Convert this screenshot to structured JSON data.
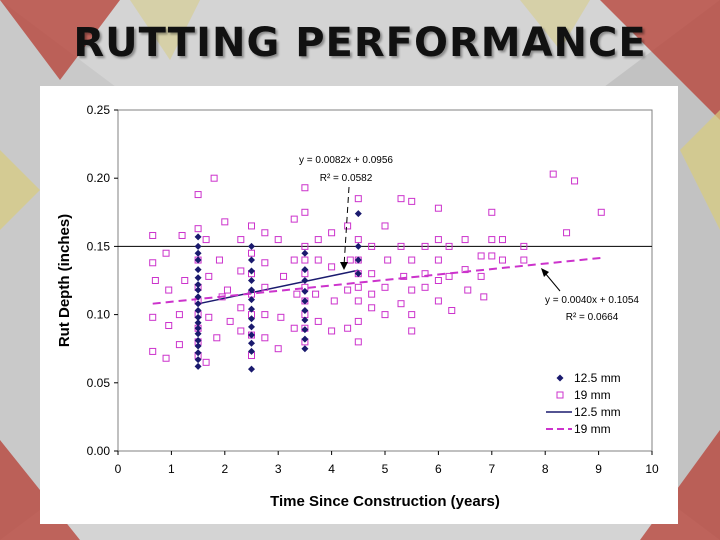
{
  "slide": {
    "title": "RUTTING PERFORMANCE"
  },
  "colors": {
    "series_12_5": "#1a1a6e",
    "series_19": "#cc33cc",
    "plot_bg": "#ffffff",
    "background_red": "#b8463c",
    "background_gold": "#d8cc7c"
  },
  "chart_data": {
    "type": "scatter",
    "title": "",
    "xlabel": "Time Since Construction (years)",
    "ylabel": "Rut Depth (inches)",
    "xlim": [
      0,
      10
    ],
    "ylim": [
      0,
      0.25
    ],
    "x_ticks": [
      "0",
      "1",
      "2",
      "3",
      "4",
      "5",
      "6",
      "7",
      "8",
      "9",
      "10"
    ],
    "y_ticks": [
      "0.00",
      "0.05",
      "0.10",
      "0.15",
      "0.20",
      "0.25"
    ],
    "grid": false,
    "reference_line": {
      "y": 0.15
    },
    "legend_position": "bottom-right",
    "series": [
      {
        "name": "12.5 mm",
        "marker": "diamond",
        "points": [
          [
            1.5,
            0.157
          ],
          [
            1.5,
            0.15
          ],
          [
            1.5,
            0.145
          ],
          [
            1.5,
            0.14
          ],
          [
            1.5,
            0.133
          ],
          [
            1.5,
            0.127
          ],
          [
            1.5,
            0.122
          ],
          [
            1.5,
            0.118
          ],
          [
            1.5,
            0.113
          ],
          [
            1.5,
            0.108
          ],
          [
            1.5,
            0.103
          ],
          [
            1.5,
            0.098
          ],
          [
            1.5,
            0.094
          ],
          [
            1.5,
            0.09
          ],
          [
            1.5,
            0.086
          ],
          [
            1.5,
            0.081
          ],
          [
            1.5,
            0.077
          ],
          [
            1.5,
            0.072
          ],
          [
            1.5,
            0.067
          ],
          [
            1.5,
            0.062
          ],
          [
            2.5,
            0.15
          ],
          [
            2.5,
            0.14
          ],
          [
            2.5,
            0.132
          ],
          [
            2.5,
            0.125
          ],
          [
            2.5,
            0.118
          ],
          [
            2.5,
            0.111
          ],
          [
            2.5,
            0.104
          ],
          [
            2.5,
            0.097
          ],
          [
            2.5,
            0.091
          ],
          [
            2.5,
            0.085
          ],
          [
            2.5,
            0.079
          ],
          [
            2.5,
            0.073
          ],
          [
            2.5,
            0.06
          ],
          [
            3.5,
            0.145
          ],
          [
            3.5,
            0.133
          ],
          [
            3.5,
            0.125
          ],
          [
            3.5,
            0.117
          ],
          [
            3.5,
            0.11
          ],
          [
            3.5,
            0.103
          ],
          [
            3.5,
            0.096
          ],
          [
            3.5,
            0.089
          ],
          [
            3.5,
            0.082
          ],
          [
            3.5,
            0.075
          ],
          [
            4.5,
            0.174
          ],
          [
            4.5,
            0.15
          ],
          [
            4.5,
            0.14
          ],
          [
            4.5,
            0.13
          ]
        ]
      },
      {
        "name": "19 mm",
        "marker": "square",
        "points": [
          [
            0.65,
            0.158
          ],
          [
            0.65,
            0.138
          ],
          [
            0.7,
            0.125
          ],
          [
            0.65,
            0.098
          ],
          [
            0.65,
            0.073
          ],
          [
            0.9,
            0.145
          ],
          [
            0.95,
            0.118
          ],
          [
            0.95,
            0.092
          ],
          [
            0.9,
            0.068
          ],
          [
            1.2,
            0.158
          ],
          [
            1.25,
            0.125
          ],
          [
            1.15,
            0.1
          ],
          [
            1.15,
            0.078
          ],
          [
            1.5,
            0.188
          ],
          [
            1.5,
            0.163
          ],
          [
            1.5,
            0.14
          ],
          [
            1.5,
            0.12
          ],
          [
            1.5,
            0.11
          ],
          [
            1.5,
            0.1
          ],
          [
            1.5,
            0.09
          ],
          [
            1.5,
            0.08
          ],
          [
            1.5,
            0.07
          ],
          [
            1.65,
            0.155
          ],
          [
            1.7,
            0.128
          ],
          [
            1.7,
            0.098
          ],
          [
            1.65,
            0.065
          ],
          [
            1.8,
            0.2
          ],
          [
            1.9,
            0.14
          ],
          [
            1.95,
            0.113
          ],
          [
            1.85,
            0.083
          ],
          [
            2.0,
            0.168
          ],
          [
            2.05,
            0.118
          ],
          [
            2.1,
            0.095
          ],
          [
            2.3,
            0.155
          ],
          [
            2.3,
            0.132
          ],
          [
            2.3,
            0.105
          ],
          [
            2.3,
            0.088
          ],
          [
            2.5,
            0.165
          ],
          [
            2.5,
            0.145
          ],
          [
            2.5,
            0.13
          ],
          [
            2.5,
            0.115
          ],
          [
            2.5,
            0.1
          ],
          [
            2.5,
            0.085
          ],
          [
            2.5,
            0.07
          ],
          [
            2.75,
            0.16
          ],
          [
            2.75,
            0.138
          ],
          [
            2.75,
            0.12
          ],
          [
            2.75,
            0.1
          ],
          [
            2.75,
            0.083
          ],
          [
            3.0,
            0.155
          ],
          [
            3.1,
            0.128
          ],
          [
            3.05,
            0.098
          ],
          [
            3.0,
            0.075
          ],
          [
            3.3,
            0.17
          ],
          [
            3.3,
            0.14
          ],
          [
            3.35,
            0.115
          ],
          [
            3.3,
            0.09
          ],
          [
            3.5,
            0.193
          ],
          [
            3.5,
            0.175
          ],
          [
            3.5,
            0.15
          ],
          [
            3.5,
            0.14
          ],
          [
            3.5,
            0.13
          ],
          [
            3.5,
            0.12
          ],
          [
            3.5,
            0.11
          ],
          [
            3.5,
            0.1
          ],
          [
            3.5,
            0.09
          ],
          [
            3.5,
            0.08
          ],
          [
            3.75,
            0.155
          ],
          [
            3.75,
            0.14
          ],
          [
            3.7,
            0.115
          ],
          [
            3.75,
            0.095
          ],
          [
            4.0,
            0.16
          ],
          [
            4.0,
            0.135
          ],
          [
            4.05,
            0.11
          ],
          [
            4.0,
            0.088
          ],
          [
            4.3,
            0.165
          ],
          [
            4.35,
            0.14
          ],
          [
            4.3,
            0.118
          ],
          [
            4.3,
            0.09
          ],
          [
            4.5,
            0.185
          ],
          [
            4.5,
            0.155
          ],
          [
            4.5,
            0.14
          ],
          [
            4.5,
            0.13
          ],
          [
            4.5,
            0.12
          ],
          [
            4.5,
            0.11
          ],
          [
            4.5,
            0.095
          ],
          [
            4.5,
            0.08
          ],
          [
            4.75,
            0.15
          ],
          [
            4.75,
            0.13
          ],
          [
            4.75,
            0.115
          ],
          [
            4.75,
            0.105
          ],
          [
            5.0,
            0.165
          ],
          [
            5.05,
            0.14
          ],
          [
            5.0,
            0.12
          ],
          [
            5.0,
            0.1
          ],
          [
            5.3,
            0.185
          ],
          [
            5.3,
            0.15
          ],
          [
            5.35,
            0.128
          ],
          [
            5.3,
            0.108
          ],
          [
            5.5,
            0.183
          ],
          [
            5.5,
            0.14
          ],
          [
            5.5,
            0.118
          ],
          [
            5.5,
            0.1
          ],
          [
            5.5,
            0.088
          ],
          [
            5.75,
            0.15
          ],
          [
            5.75,
            0.13
          ],
          [
            5.75,
            0.12
          ],
          [
            6.0,
            0.178
          ],
          [
            6.0,
            0.155
          ],
          [
            6.0,
            0.14
          ],
          [
            6.0,
            0.125
          ],
          [
            6.0,
            0.11
          ],
          [
            6.2,
            0.15
          ],
          [
            6.2,
            0.128
          ],
          [
            6.25,
            0.103
          ],
          [
            6.5,
            0.155
          ],
          [
            6.5,
            0.133
          ],
          [
            6.55,
            0.118
          ],
          [
            6.8,
            0.143
          ],
          [
            6.8,
            0.128
          ],
          [
            6.85,
            0.113
          ],
          [
            7.0,
            0.175
          ],
          [
            7.0,
            0.155
          ],
          [
            7.0,
            0.143
          ],
          [
            7.2,
            0.155
          ],
          [
            7.2,
            0.14
          ],
          [
            7.6,
            0.15
          ],
          [
            7.6,
            0.14
          ],
          [
            8.15,
            0.203
          ],
          [
            8.4,
            0.16
          ],
          [
            8.55,
            0.198
          ],
          [
            9.05,
            0.175
          ]
        ]
      }
    ],
    "trendlines": [
      {
        "series": "12.5 mm",
        "style": "solid",
        "equation": "y = 0.0082x + 0.0956",
        "r_squared": "R² = 0.0582",
        "slope": 0.0082,
        "intercept": 0.0956,
        "x_range": [
          1.5,
          4.5
        ]
      },
      {
        "series": "19 mm",
        "style": "dashed",
        "equation": "y = 0.0040x + 0.1054",
        "r_squared": "R² = 0.0664",
        "slope": 0.004,
        "intercept": 0.1054,
        "x_range": [
          0.65,
          9.05
        ]
      }
    ],
    "legend": [
      {
        "label": "12.5 mm",
        "kind": "marker",
        "series": "12.5 mm"
      },
      {
        "label": "19 mm",
        "kind": "marker",
        "series": "19 mm"
      },
      {
        "label": "12.5 mm",
        "kind": "line",
        "series": "12.5 mm"
      },
      {
        "label": "19 mm",
        "kind": "line",
        "series": "19 mm"
      }
    ]
  }
}
